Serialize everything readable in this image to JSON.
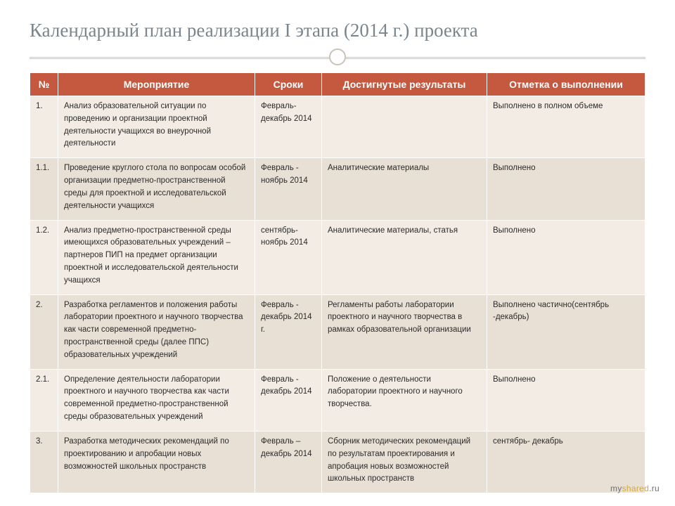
{
  "title": "Календарный план реализации I этапа (2014 г.) проекта",
  "columns": [
    "№",
    "Мероприятие",
    "Сроки",
    "Достигнутые результаты",
    "Отметка о выполнении"
  ],
  "rows": [
    {
      "num": "1.",
      "activity": "Анализ образовательной ситуации по проведению и организации проектной деятельности учащихся во внеурочной деятельности",
      "time": "Февраль- декабрь 2014",
      "result": "",
      "mark": "Выполнено в полном объеме"
    },
    {
      "num": "1.1.",
      "activity": "Проведение круглого стола по вопросам особой организации предметно-пространственной среды для проектной и исследовательской деятельности учащихся",
      "time": "Февраль - ноябрь 2014",
      "result": "Аналитические материалы",
      "mark": "Выполнено"
    },
    {
      "num": "1.2.",
      "activity": "Анализ предметно-пространственной среды имеющихся образовательных учреждений – партнеров ПИП на предмет организации проектной и исследовательской деятельности учащихся",
      "time": "сентябрь- ноябрь 2014",
      "result": "Аналитические материалы, статья",
      "mark": "Выполнено"
    },
    {
      "num": "2.",
      "activity": "Разработка регламентов и положения работы лаборатории проектного и научного творчества как части современной предметно-пространственной среды (далее ППС) образовательных учреждений",
      "time": "Февраль - декабрь 2014 г.",
      "result": "Регламенты работы лаборатории проектного и научного творчества в рамках образовательной организации",
      "mark": "Выполнено частично(сентябрь -декабрь)"
    },
    {
      "num": "2.1.",
      "activity": "Определение деятельности лаборатории проектного и научного творчества как части современной предметно-пространственной среды образовательных учреждений",
      "time": "Февраль - декабрь 2014",
      "result": "Положение о деятельности лаборатории проектного и научного творчества.",
      "mark": "Выполнено"
    },
    {
      "num": "3.",
      "activity": "Разработка методических рекомендаций по проектированию и апробации новых возможностей школьных пространств",
      "time": "Февраль – декабрь 2014",
      "result": "Сборник методических рекомендаций по результатам проектирования и апробация новых возможностей школьных пространств",
      "mark": "сентябрь- декабрь"
    }
  ],
  "watermark": {
    "my": "my",
    "shared": "shared",
    "ru": ".ru"
  },
  "colors": {
    "header_bg": "#c45940",
    "header_fg": "#ffffff",
    "band_a": "#f2ece5",
    "band_b": "#e8e0d5",
    "title_color": "#7a858d",
    "rule_color": "#c9c3b8"
  }
}
